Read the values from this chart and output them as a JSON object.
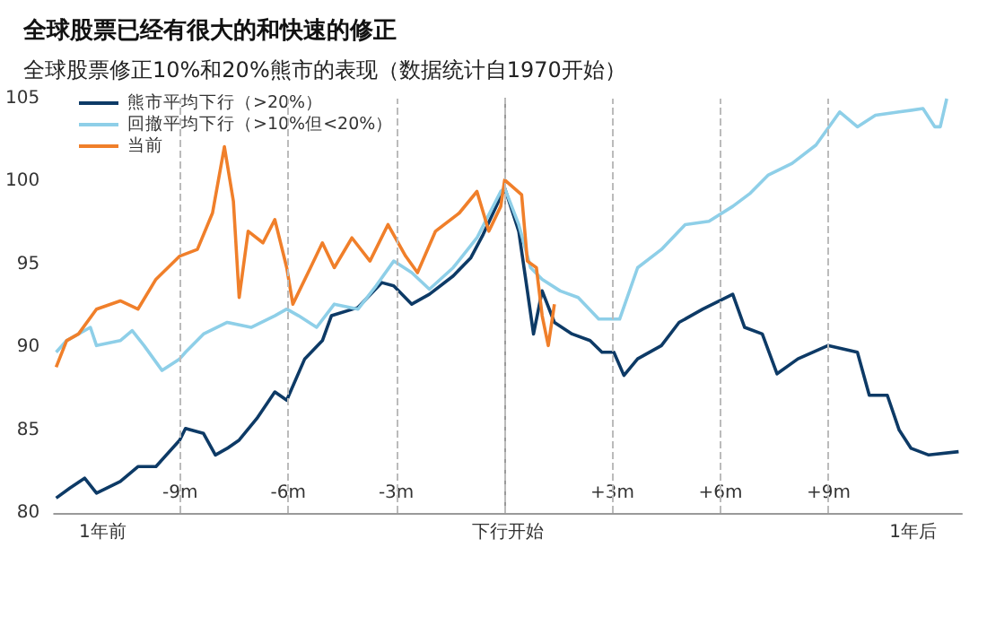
{
  "chart_data": {
    "type": "line",
    "title": "全球股票已经有很大的和快速的修正",
    "subtitle": "全球股票修正10%和20%熊市的表现（数据统计自1970开始）",
    "xlim": [
      -12.5,
      12.7
    ],
    "xticks": [
      {
        "value": -9,
        "label": "-9m"
      },
      {
        "value": -6,
        "label": "-6m"
      },
      {
        "value": -3,
        "label": "-3m"
      },
      {
        "value": 3,
        "label": "+3m"
      },
      {
        "value": 6,
        "label": "+6m"
      },
      {
        "value": 9,
        "label": "+9m"
      }
    ],
    "annotations": [
      "1年前",
      "下行开始",
      "1年后"
    ],
    "ylim": [
      80,
      105
    ],
    "yticks": [
      80,
      85,
      90,
      95,
      100,
      105
    ],
    "grid": false,
    "legend": "top left",
    "marker": "none",
    "line_style": "solid",
    "ref_lines": [
      {
        "axis": "x",
        "value": -9,
        "color": "#bbbbbb",
        "line_style": "dashed"
      },
      {
        "axis": "x",
        "value": -6,
        "color": "#bbbbbb",
        "line_style": "dashed"
      },
      {
        "axis": "x",
        "value": -3,
        "color": "#bbbbbb",
        "line_style": "dashed"
      },
      {
        "axis": "x",
        "value": 0,
        "color": "#bbbbbb",
        "line_style": "dashed"
      },
      {
        "axis": "x",
        "value": 3,
        "color": "#bbbbbb",
        "line_style": "dashed"
      },
      {
        "axis": "x",
        "value": 6,
        "color": "#bbbbbb",
        "line_style": "dashed"
      },
      {
        "axis": "x",
        "value": 9,
        "color": "#bbbbbb",
        "line_style": "dashed"
      }
    ],
    "series": [
      {
        "name": "熊市平均下行（>20%）",
        "color": "#0d3a66",
        "x": [
          -12.44,
          -12.06,
          -11.65,
          -11.32,
          -10.66,
          -10.17,
          -9.67,
          -9.01,
          -8.85,
          -8.35,
          -8.02,
          -7.69,
          -7.36,
          -6.87,
          -6.37,
          -6.04,
          -5.54,
          -5.05,
          -4.8,
          -4.06,
          -3.4,
          -3.07,
          -2.57,
          -2.08,
          -1.42,
          -0.93,
          -0.59,
          0.01,
          0.4,
          0.64,
          0.81,
          1.05,
          1.39,
          1.88,
          2.38,
          2.71,
          3.04,
          3.32,
          3.7,
          4.36,
          4.85,
          5.51,
          6.34,
          6.67,
          7.16,
          7.57,
          8.15,
          8.98,
          9.8,
          10.13,
          10.63,
          10.96,
          11.29,
          11.78,
          12.61
        ],
        "values": [
          80.9,
          81.5,
          82.1,
          81.2,
          81.9,
          82.8,
          82.8,
          84.4,
          85.1,
          84.8,
          83.5,
          83.9,
          84.4,
          85.7,
          87.3,
          86.8,
          89.3,
          90.4,
          91.9,
          92.4,
          93.9,
          93.7,
          92.6,
          93.2,
          94.3,
          95.4,
          96.8,
          99.6,
          97.0,
          93.4,
          90.8,
          93.4,
          91.5,
          90.8,
          90.4,
          89.7,
          89.7,
          88.3,
          89.3,
          90.1,
          91.5,
          92.3,
          93.2,
          91.2,
          90.8,
          88.4,
          89.3,
          90.1,
          89.7,
          87.1,
          87.1,
          85.0,
          83.9,
          83.5,
          83.7
        ]
      },
      {
        "name": "回撤平均下行（>10%但<20%）",
        "color": "#8ecfe8",
        "x": [
          -12.44,
          -12.15,
          -11.49,
          -11.32,
          -10.66,
          -10.33,
          -10.0,
          -9.5,
          -9.01,
          -8.85,
          -8.35,
          -7.69,
          -7.03,
          -6.37,
          -6.04,
          -5.71,
          -5.21,
          -4.72,
          -4.06,
          -3.56,
          -3.07,
          -2.57,
          -2.08,
          -1.42,
          -0.76,
          -0.1,
          0.01,
          0.4,
          0.73,
          1.05,
          1.55,
          2.05,
          2.62,
          3.2,
          3.7,
          4.36,
          5.02,
          5.68,
          6.34,
          6.83,
          7.33,
          7.99,
          8.65,
          9.31,
          9.8,
          10.3,
          10.96,
          11.62,
          11.95,
          12.1,
          12.28
        ],
        "values": [
          89.7,
          90.4,
          91.2,
          90.1,
          90.4,
          91.0,
          90.1,
          88.6,
          89.3,
          89.7,
          90.8,
          91.5,
          91.2,
          91.9,
          92.3,
          91.9,
          91.2,
          92.6,
          92.3,
          93.7,
          95.2,
          94.5,
          93.5,
          94.8,
          96.6,
          99.4,
          99.6,
          97.4,
          94.8,
          94.1,
          93.4,
          93.0,
          91.7,
          91.7,
          94.8,
          95.9,
          97.4,
          97.6,
          98.5,
          99.3,
          100.4,
          101.1,
          102.2,
          104.2,
          103.3,
          104.0,
          104.2,
          104.4,
          103.3,
          103.3,
          105.0
        ]
      },
      {
        "name": "当前",
        "color": "#f07f2a",
        "x": [
          -12.44,
          -12.15,
          -11.82,
          -11.32,
          -10.66,
          -10.17,
          -9.67,
          -9.01,
          -8.52,
          -8.1,
          -7.77,
          -7.52,
          -7.36,
          -7.11,
          -6.7,
          -6.37,
          -6.04,
          -5.87,
          -5.38,
          -5.05,
          -4.72,
          -4.23,
          -3.73,
          -3.23,
          -2.74,
          -2.41,
          -1.91,
          -1.25,
          -0.76,
          -0.43,
          -0.1,
          0.01,
          0.48,
          0.64,
          0.89,
          1.05,
          1.22,
          1.39
        ],
        "values": [
          88.8,
          90.4,
          90.8,
          92.3,
          92.8,
          92.3,
          94.1,
          95.5,
          95.9,
          98.1,
          102.1,
          98.8,
          93.0,
          97.0,
          96.3,
          97.7,
          94.8,
          92.6,
          94.8,
          96.3,
          94.8,
          96.6,
          95.2,
          97.4,
          95.5,
          94.5,
          97.0,
          98.1,
          99.4,
          97.0,
          98.5,
          100.1,
          99.2,
          95.2,
          94.8,
          91.9,
          90.1,
          92.6
        ]
      }
    ]
  }
}
